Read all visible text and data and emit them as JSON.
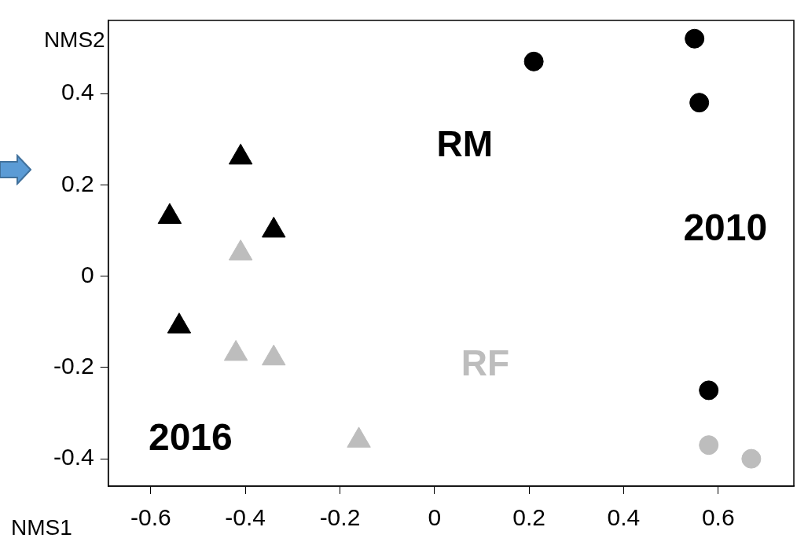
{
  "chart_data": {
    "type": "scatter",
    "xlabel": "NMS1",
    "ylabel": "NMS2",
    "xlim": [
      -0.69,
      0.76
    ],
    "ylim": [
      -0.46,
      0.56
    ],
    "xticks": [
      -0.6,
      -0.4,
      -0.2,
      0,
      0.2,
      0.4,
      0.6
    ],
    "yticks": [
      -0.4,
      -0.2,
      0,
      0.2,
      0.4
    ],
    "grid": false,
    "legend": false,
    "series": [
      {
        "name": "RM",
        "color": "#000000",
        "marker": "circle",
        "x": [
          0.21,
          0.55,
          0.56,
          0.58
        ],
        "values": [
          0.47,
          0.52,
          0.38,
          -0.25
        ]
      },
      {
        "name": "RF",
        "color": "#bdbdbd",
        "marker": "circle",
        "x": [
          0.58,
          0.67
        ],
        "values": [
          -0.37,
          -0.4
        ]
      },
      {
        "color": "#000000",
        "marker": "triangle",
        "x": [
          -0.41,
          -0.56,
          -0.34,
          -0.54
        ],
        "values": [
          0.26,
          0.13,
          0.1,
          -0.11
        ]
      },
      {
        "color": "#bdbdbd",
        "marker": "triangle",
        "x": [
          -0.41,
          -0.42,
          -0.34,
          -0.16
        ],
        "values": [
          0.05,
          -0.17,
          -0.18,
          -0.36
        ]
      }
    ],
    "annotations": [
      "2010",
      "2016"
    ]
  }
}
